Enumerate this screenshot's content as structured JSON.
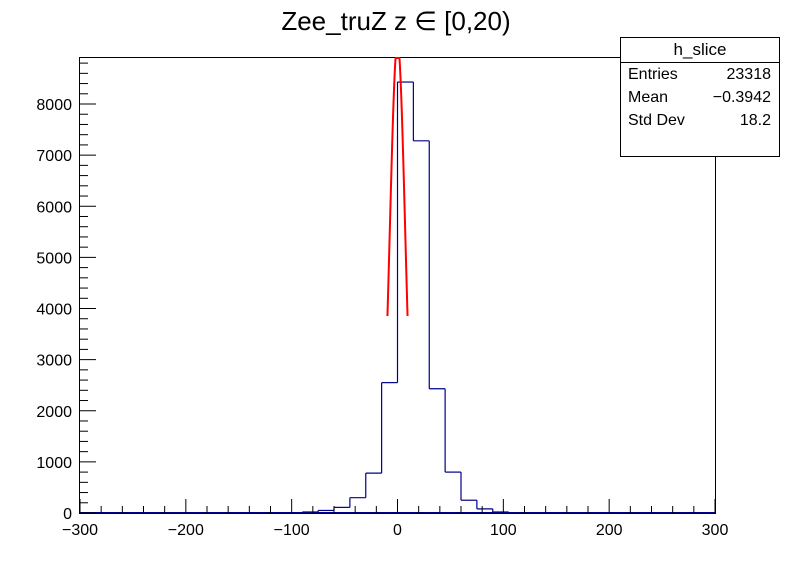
{
  "chart_data": {
    "type": "bar",
    "title": "Zee_truZ z  ∈ [0,20)",
    "xlabel": "",
    "ylabel": "",
    "xlim": [
      -300,
      300
    ],
    "ylim": [
      0,
      8900
    ],
    "x_ticks": [
      -300,
      -200,
      -100,
      0,
      100,
      200,
      300
    ],
    "y_ticks": [
      0,
      1000,
      2000,
      3000,
      4000,
      5000,
      6000,
      7000,
      8000
    ],
    "bin_width": 15,
    "bins": [
      {
        "x": -75,
        "y": 20
      },
      {
        "x": -60,
        "y": 50
      },
      {
        "x": -45,
        "y": 110
      },
      {
        "x": -30,
        "y": 300
      },
      {
        "x": -15,
        "y": 780
      },
      {
        "x": 0,
        "y": 2550
      },
      {
        "x": 15,
        "y": 8430
      },
      {
        "x": 30,
        "y": 7280
      },
      {
        "x": 45,
        "y": 2430
      },
      {
        "x": 60,
        "y": 800
      },
      {
        "x": 75,
        "y": 250
      },
      {
        "x": 90,
        "y": 80
      },
      {
        "x": 105,
        "y": 20
      }
    ],
    "fit": {
      "type": "gaussian",
      "color": "#ff0000",
      "amplitude": 9200,
      "mean": 0,
      "sigma": 7.2,
      "range": [
        -9.5,
        9.5
      ]
    },
    "series_color": "#00008b",
    "stats": {
      "name": "h_slice",
      "rows": [
        {
          "label": "Entries",
          "value": "23318"
        },
        {
          "label": "Mean",
          "value": "−0.3942"
        },
        {
          "label": "Std Dev",
          "value": "18.2"
        }
      ]
    }
  }
}
